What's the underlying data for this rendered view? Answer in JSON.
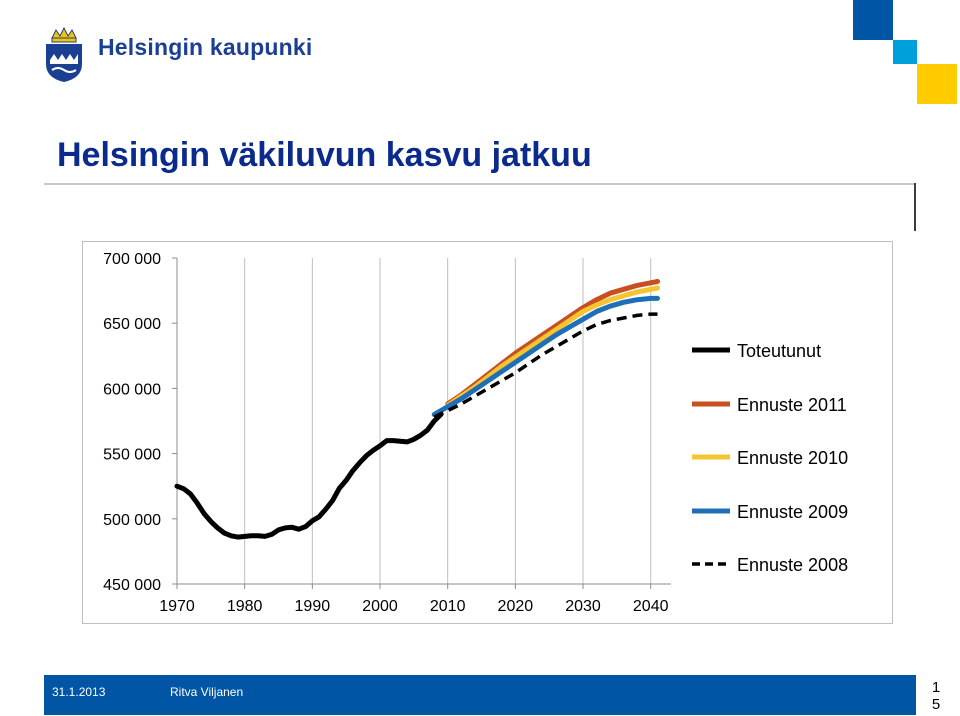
{
  "header": {
    "brand": "Helsingin kaupunki",
    "logo_icon": "helsinki-crest-icon",
    "accent_colors": [
      "#0055a5",
      "#00a0dc",
      "#ffcc00"
    ]
  },
  "slide": {
    "title": "Helsingin väkiluvun kasvu jatkuu"
  },
  "footer": {
    "date": "31.1.2013",
    "author": "Ritva Viljanen",
    "page": "15"
  },
  "chart_data": {
    "type": "line",
    "title": "",
    "xlabel": "",
    "ylabel": "",
    "xlim": [
      1970,
      2043
    ],
    "ylim": [
      450000,
      700000
    ],
    "y_ticks": [
      450000,
      500000,
      550000,
      600000,
      650000,
      700000
    ],
    "y_tick_labels": [
      "450 000",
      "500 000",
      "550 000",
      "600 000",
      "650 000",
      "700 000"
    ],
    "x_ticks": [
      1970,
      1980,
      1990,
      2000,
      2010,
      2020,
      2030,
      2040
    ],
    "x_tick_labels": [
      "1970",
      "1980",
      "1990",
      "2000",
      "2010",
      "2020",
      "2030",
      "2040"
    ],
    "grid": "vertical",
    "legend_position": "right",
    "series": [
      {
        "name": "Toteutunut",
        "color": "#000000",
        "style": "solid",
        "x": [
          1970,
          1971,
          1972,
          1973,
          1974,
          1975,
          1976,
          1977,
          1978,
          1979,
          1980,
          1981,
          1982,
          1983,
          1984,
          1985,
          1986,
          1987,
          1988,
          1989,
          1990,
          1991,
          1992,
          1993,
          1994,
          1995,
          1996,
          1997,
          1998,
          1999,
          2000,
          2001,
          2002,
          2003,
          2004,
          2005,
          2006,
          2007,
          2008,
          2009
        ],
        "values": [
          525000,
          523000,
          519000,
          512000,
          504000,
          498000,
          493000,
          489000,
          487000,
          486000,
          486500,
          487000,
          487000,
          486500,
          488000,
          491500,
          493000,
          493500,
          492000,
          494000,
          498500,
          501500,
          507500,
          514000,
          523500,
          529500,
          537000,
          543000,
          548500,
          552500,
          556000,
          560000,
          560000,
          559500,
          559000,
          561000,
          564000,
          568000,
          575000,
          580000
        ]
      },
      {
        "name": "Ennuste 2011",
        "color": "#c84f1f",
        "style": "solid",
        "x": [
          2010,
          2012,
          2014,
          2016,
          2018,
          2020,
          2022,
          2024,
          2026,
          2028,
          2030,
          2032,
          2034,
          2036,
          2038,
          2040,
          2041
        ],
        "values": [
          588000,
          595000,
          603000,
          611000,
          619000,
          627000,
          634000,
          641000,
          648000,
          655000,
          662000,
          668000,
          673000,
          676000,
          679000,
          681000,
          682000
        ]
      },
      {
        "name": "Ennuste 2010",
        "color": "#f5c431",
        "style": "solid",
        "x": [
          2010,
          2012,
          2014,
          2016,
          2018,
          2020,
          2022,
          2024,
          2026,
          2028,
          2030,
          2032,
          2034,
          2036,
          2038,
          2040,
          2041
        ],
        "values": [
          587000,
          594000,
          601000,
          609000,
          617000,
          624000,
          631000,
          638000,
          645000,
          652000,
          659000,
          664000,
          668000,
          671000,
          674000,
          676000,
          677000
        ]
      },
      {
        "name": "Ennuste 2009",
        "color": "#1f6fb8",
        "style": "solid",
        "x": [
          2008,
          2010,
          2012,
          2014,
          2016,
          2018,
          2020,
          2022,
          2024,
          2026,
          2028,
          2030,
          2032,
          2034,
          2036,
          2038,
          2040,
          2041
        ],
        "values": [
          580000,
          586000,
          592000,
          599000,
          606000,
          613000,
          620000,
          627000,
          634000,
          641000,
          647000,
          653000,
          659000,
          663000,
          666000,
          668000,
          669000,
          669000
        ]
      },
      {
        "name": "Ennuste 2008",
        "color": "#000000",
        "style": "dashed",
        "x": [
          2008,
          2010,
          2012,
          2014,
          2016,
          2018,
          2020,
          2022,
          2024,
          2026,
          2028,
          2030,
          2032,
          2034,
          2036,
          2038,
          2040,
          2041
        ],
        "values": [
          578000,
          583000,
          588000,
          594000,
          600000,
          606000,
          612000,
          619000,
          626000,
          632000,
          638000,
          644000,
          649000,
          652000,
          654000,
          656000,
          657000,
          657000
        ]
      }
    ]
  }
}
